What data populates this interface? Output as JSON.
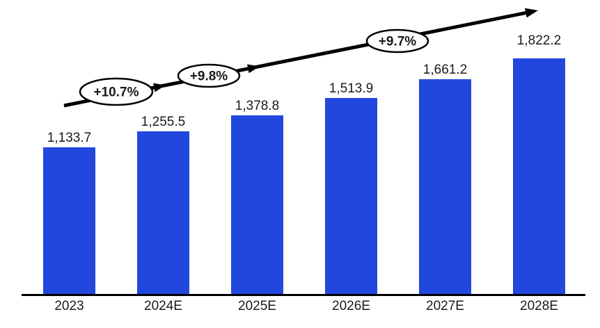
{
  "chart_data": {
    "type": "bar",
    "title": "",
    "categories": [
      "2023",
      "2024E",
      "2025E",
      "2026E",
      "2027E",
      "2028E"
    ],
    "values": [
      1133.7,
      1255.5,
      1378.8,
      1513.9,
      1661.2,
      1822.2
    ],
    "data_labels": [
      "1,133.7",
      "1,255.5",
      "1,378.8",
      "1,513.9",
      "1,661.2",
      "1,822.2"
    ],
    "growth_annotations": [
      {
        "label": "+10.7%"
      },
      {
        "label": "+9.8%"
      },
      {
        "label": "+9.7%"
      }
    ],
    "xlabel": "",
    "ylabel": "",
    "ylim": [
      0,
      2270
    ],
    "grid": false,
    "legend": false,
    "styles": {
      "bar_color": "#2247DF",
      "axis_color": "#000000",
      "arrow_color": "#000000",
      "ellipse_fill": "#FFFFFF",
      "ellipse_border": "#000000",
      "label_color": "#1A1A1A"
    }
  }
}
